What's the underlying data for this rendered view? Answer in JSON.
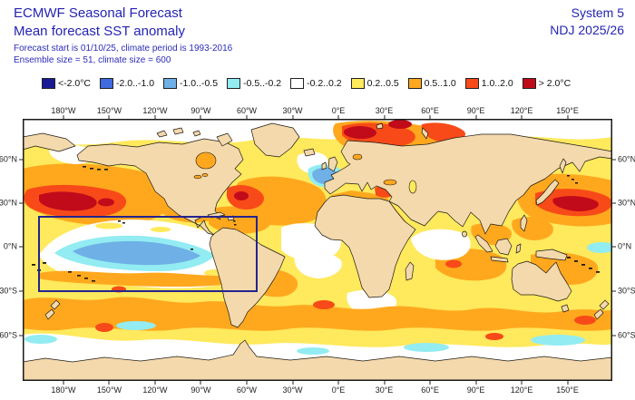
{
  "header": {
    "title": "ECMWF Seasonal Forecast",
    "subtitle": "Mean forecast SST anomaly",
    "info_line1": "Forecast start is 01/10/25, climate period is 1993-2016",
    "info_line2": "Ensemble size = 51, climate size = 600",
    "system": "System 5",
    "season": "NDJ 2025/26",
    "text_color": "#2424b2"
  },
  "legend": {
    "items": [
      {
        "label": "<-2.0°C",
        "color": "#1a1a96"
      },
      {
        "label": "-2.0..-1.0",
        "color": "#3f6ae0"
      },
      {
        "label": "-1.0..-0.5",
        "color": "#6fb0e6"
      },
      {
        "label": "-0.5..-0.2",
        "color": "#92ecf2"
      },
      {
        "label": "-0.2..0.2",
        "color": "#ffffff"
      },
      {
        "label": "0.2..0.5",
        "color": "#ffe95c"
      },
      {
        "label": "0.5..1.0",
        "color": "#ffa81e"
      },
      {
        "label": "1.0..2.0",
        "color": "#f84a18"
      },
      {
        "label": "> 2.0°C",
        "color": "#c10b1a"
      }
    ]
  },
  "map": {
    "lon_labels": [
      "180°W",
      "150°W",
      "120°W",
      "90°W",
      "60°W",
      "30°W",
      "0°E",
      "30°E",
      "60°E",
      "90°E",
      "120°E",
      "150°E"
    ],
    "lat_labels": [
      "60°N",
      "30°N",
      "0°N",
      "30°S",
      "60°S"
    ],
    "land_color": "#f3d9ac",
    "nino_box_color": "#24248f"
  },
  "chart_data": {
    "type": "heatmap",
    "title": "ECMWF Seasonal Forecast — Mean forecast SST anomaly",
    "subtitle": "System 5, NDJ 2025/26",
    "forecast_start": "01/10/25",
    "climate_period": "1993-2016",
    "ensemble_size": 51,
    "climate_size": 600,
    "units": "°C",
    "x_axis": {
      "label": "longitude",
      "ticks": [
        "180°W",
        "150°W",
        "120°W",
        "90°W",
        "60°W",
        "30°W",
        "0°E",
        "30°E",
        "60°E",
        "90°E",
        "120°E",
        "150°E"
      ]
    },
    "y_axis": {
      "label": "latitude",
      "ticks": [
        "60°N",
        "30°N",
        "0°N",
        "30°S",
        "60°S"
      ]
    },
    "color_bins": [
      {
        "range": "< -2.0",
        "color": "#1a1a96"
      },
      {
        "range": "-2.0..-1.0",
        "color": "#3f6ae0"
      },
      {
        "range": "-1.0..-0.5",
        "color": "#6fb0e6"
      },
      {
        "range": "-0.5..-0.2",
        "color": "#92ecf2"
      },
      {
        "range": "-0.2..0.2",
        "color": "#ffffff"
      },
      {
        "range": "0.2..0.5",
        "color": "#ffe95c"
      },
      {
        "range": "0.5..1.0",
        "color": "#ffa81e"
      },
      {
        "range": "1.0..2.0",
        "color": "#f84a18"
      },
      {
        "range": "> 2.0",
        "color": "#c10b1a"
      }
    ],
    "regions": [
      {
        "name": "equatorial-central-pacific-la-nina-tongue",
        "anomaly_c": "-1.0..-0.5 core, -0.5..-0.2 surround"
      },
      {
        "name": "north-pacific-35N-45N",
        "anomaly_c": "> 2.0 core, 1.0..2.0 surround"
      },
      {
        "name": "northwest-atlantic-gulf-stream",
        "anomaly_c": "1.0..2.0 with > 2.0 spots"
      },
      {
        "name": "subpolar-atlantic-south-of-greenland",
        "anomaly_c": "-1.0..-0.5"
      },
      {
        "name": "nordic-and-barents-seas",
        "anomaly_c": "1.0..2.0 with > 2.0 spots"
      },
      {
        "name": "kuroshio-northwest-pacific",
        "anomaly_c": "> 2.0 core"
      },
      {
        "name": "mediterranean-sea",
        "anomaly_c": "0.5..2.0"
      },
      {
        "name": "southern-midlatitude-band-30S-55S",
        "anomaly_c": "0.5..1.0 with 1.0..2.0 spots"
      },
      {
        "name": "antarctic-margin-60S",
        "anomaly_c": "-0.5..0.2"
      },
      {
        "name": "tropical-indian-ocean",
        "anomaly_c": "0.2..1.0"
      },
      {
        "name": "arctic-ocean",
        "anomaly_c": "-0.2..0.2"
      }
    ],
    "annotations": [
      {
        "type": "box",
        "name": "nino-region-outline",
        "lon_range": "≈165°E–55°W",
        "lat_range": "≈20°N–30°S"
      }
    ]
  }
}
